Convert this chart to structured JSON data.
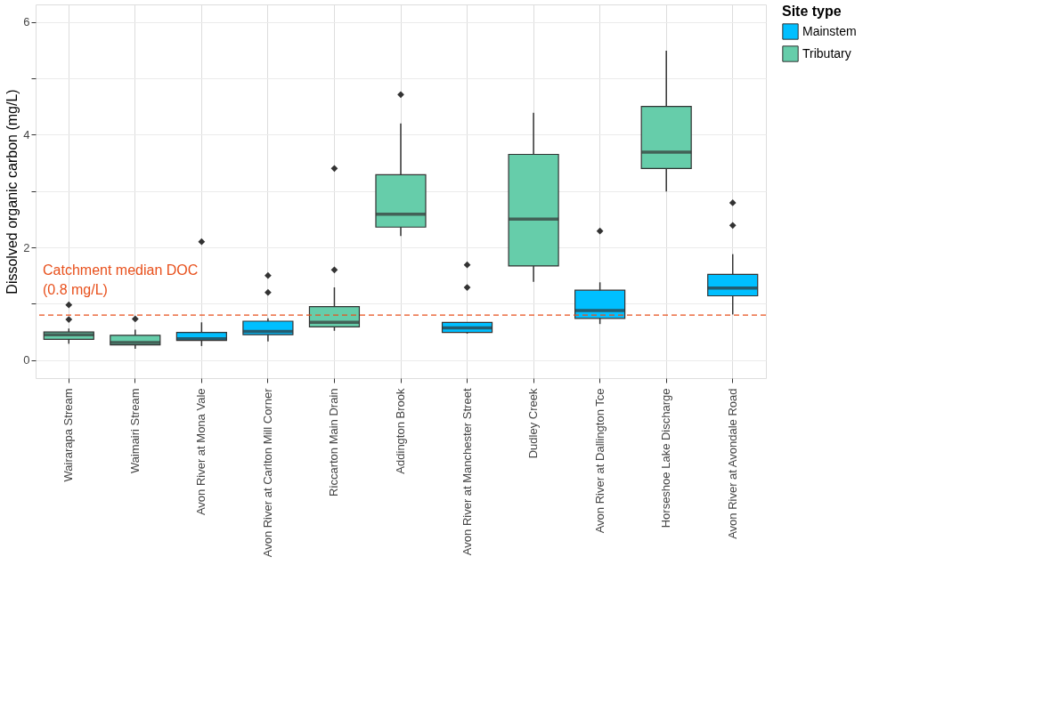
{
  "chart_data": {
    "type": "box",
    "ylabel": "Dissolved organic carbon (mg/L)",
    "legend_title": "Site type",
    "legend": "right",
    "categories": [
      "Wairarapa Stream",
      "Waimairi Stream",
      "Avon River at Mona Vale",
      "Avon River at Carlton Mill Corner",
      "Riccarton Main Drain",
      "Addington Brook",
      "Avon River at Manchester Street",
      "Dudley Creek",
      "Avon River at Dallington Tce",
      "Horseshoe Lake Discharge",
      "Avon River at Avondale Road"
    ],
    "ylim": [
      -0.32,
      6.31
    ],
    "yticks": [
      0,
      {
        "value": 1,
        "label": null
      },
      2,
      {
        "value": 3,
        "label": null
      },
      4,
      {
        "value": 5,
        "label": null
      },
      6
    ],
    "grid": true,
    "series": [
      {
        "name": "Mainstem",
        "color": "#00bfff",
        "boxes": [
          null,
          null,
          {
            "low": 0.25,
            "q1": 0.35,
            "median": 0.38,
            "q3": 0.49,
            "high": 0.67,
            "outliers": [
              2.1
            ]
          },
          {
            "low": 0.33,
            "q1": 0.45,
            "median": 0.51,
            "q3": 0.69,
            "high": 0.74,
            "outliers": [
              1.2,
              1.5
            ]
          },
          null,
          null,
          {
            "low": 0.47,
            "q1": 0.49,
            "median": 0.57,
            "q3": 0.67,
            "high": 0.67,
            "outliers": [
              1.29,
              1.69
            ]
          },
          null,
          {
            "low": 0.64,
            "q1": 0.74,
            "median": 0.88,
            "q3": 1.24,
            "high": 1.38,
            "outliers": [
              2.29
            ]
          },
          null,
          {
            "low": 0.81,
            "q1": 1.14,
            "median": 1.28,
            "q3": 1.52,
            "high": 1.88,
            "outliers": [
              2.39,
              2.79
            ]
          }
        ]
      },
      {
        "name": "Tributary",
        "color": "#66cdaa",
        "boxes": [
          {
            "low": 0.29,
            "q1": 0.37,
            "median": 0.45,
            "q3": 0.5,
            "high": 0.56,
            "outliers": [
              0.72,
              0.98
            ]
          },
          {
            "low": 0.2,
            "q1": 0.27,
            "median": 0.31,
            "q3": 0.44,
            "high": 0.54,
            "outliers": [
              0.73
            ]
          },
          null,
          null,
          {
            "low": 0.52,
            "q1": 0.59,
            "median": 0.67,
            "q3": 0.95,
            "high": 1.29,
            "outliers": [
              1.6,
              3.4
            ]
          },
          {
            "low": 2.2,
            "q1": 2.36,
            "median": 2.59,
            "q3": 3.29,
            "high": 4.2,
            "outliers": [
              4.71
            ]
          },
          null,
          {
            "low": 1.39,
            "q1": 1.67,
            "median": 2.5,
            "q3": 3.65,
            "high": 4.39
          },
          null,
          {
            "low": 2.99,
            "q1": 3.4,
            "median": 3.69,
            "q3": 4.5,
            "high": 5.49
          },
          null
        ]
      }
    ],
    "ref_lines": [
      {
        "axis": "y",
        "value": 0.8,
        "label": "Catchment median DOC\n(0.8 mg/L)",
        "color": "#e8501c",
        "line_style": "dashed"
      }
    ]
  }
}
